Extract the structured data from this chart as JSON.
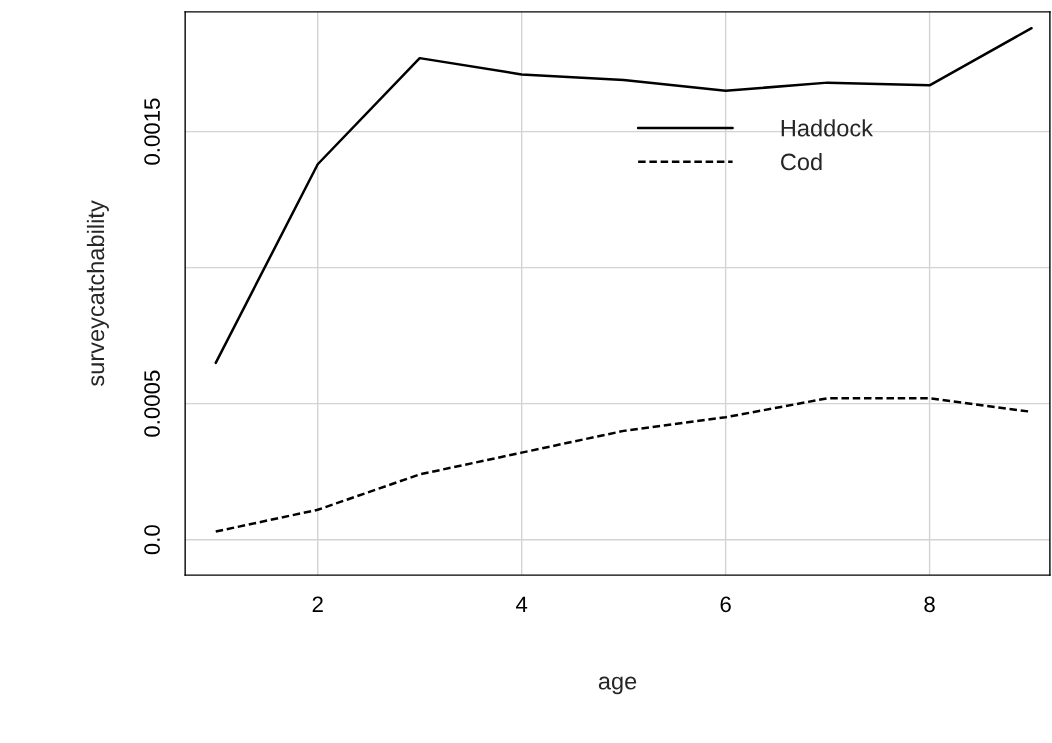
{
  "chart_data": {
    "type": "line",
    "xlabel": "age",
    "ylabel": "surveycatchability",
    "x": [
      1,
      2,
      3,
      4,
      5,
      6,
      7,
      8,
      9
    ],
    "series": [
      {
        "name": "Haddock",
        "color": "#000000",
        "line_style": "solid",
        "values": [
          0.00065,
          0.00138,
          0.00177,
          0.00171,
          0.00169,
          0.00165,
          0.00168,
          0.00167,
          0.00188
        ]
      },
      {
        "name": "Cod",
        "color": "#000000",
        "line_style": "dashed",
        "values": [
          3e-05,
          0.00011,
          0.00024,
          0.00032,
          0.0004,
          0.00045,
          0.00052,
          0.00052,
          0.00047
        ]
      }
    ],
    "xlim": [
      0.7,
      9.18
    ],
    "ylim": [
      -0.00013,
      0.00194
    ],
    "xticks": [
      2,
      4,
      6,
      8
    ],
    "yticks": [
      {
        "value": 0,
        "label": "0.0"
      },
      {
        "value": 0.0005,
        "label": "0.0005"
      },
      {
        "value": 0.001,
        "label": null
      },
      {
        "value": 0.0015,
        "label": "0.0015"
      }
    ],
    "grid": true,
    "legend": "right",
    "marker": "none"
  }
}
